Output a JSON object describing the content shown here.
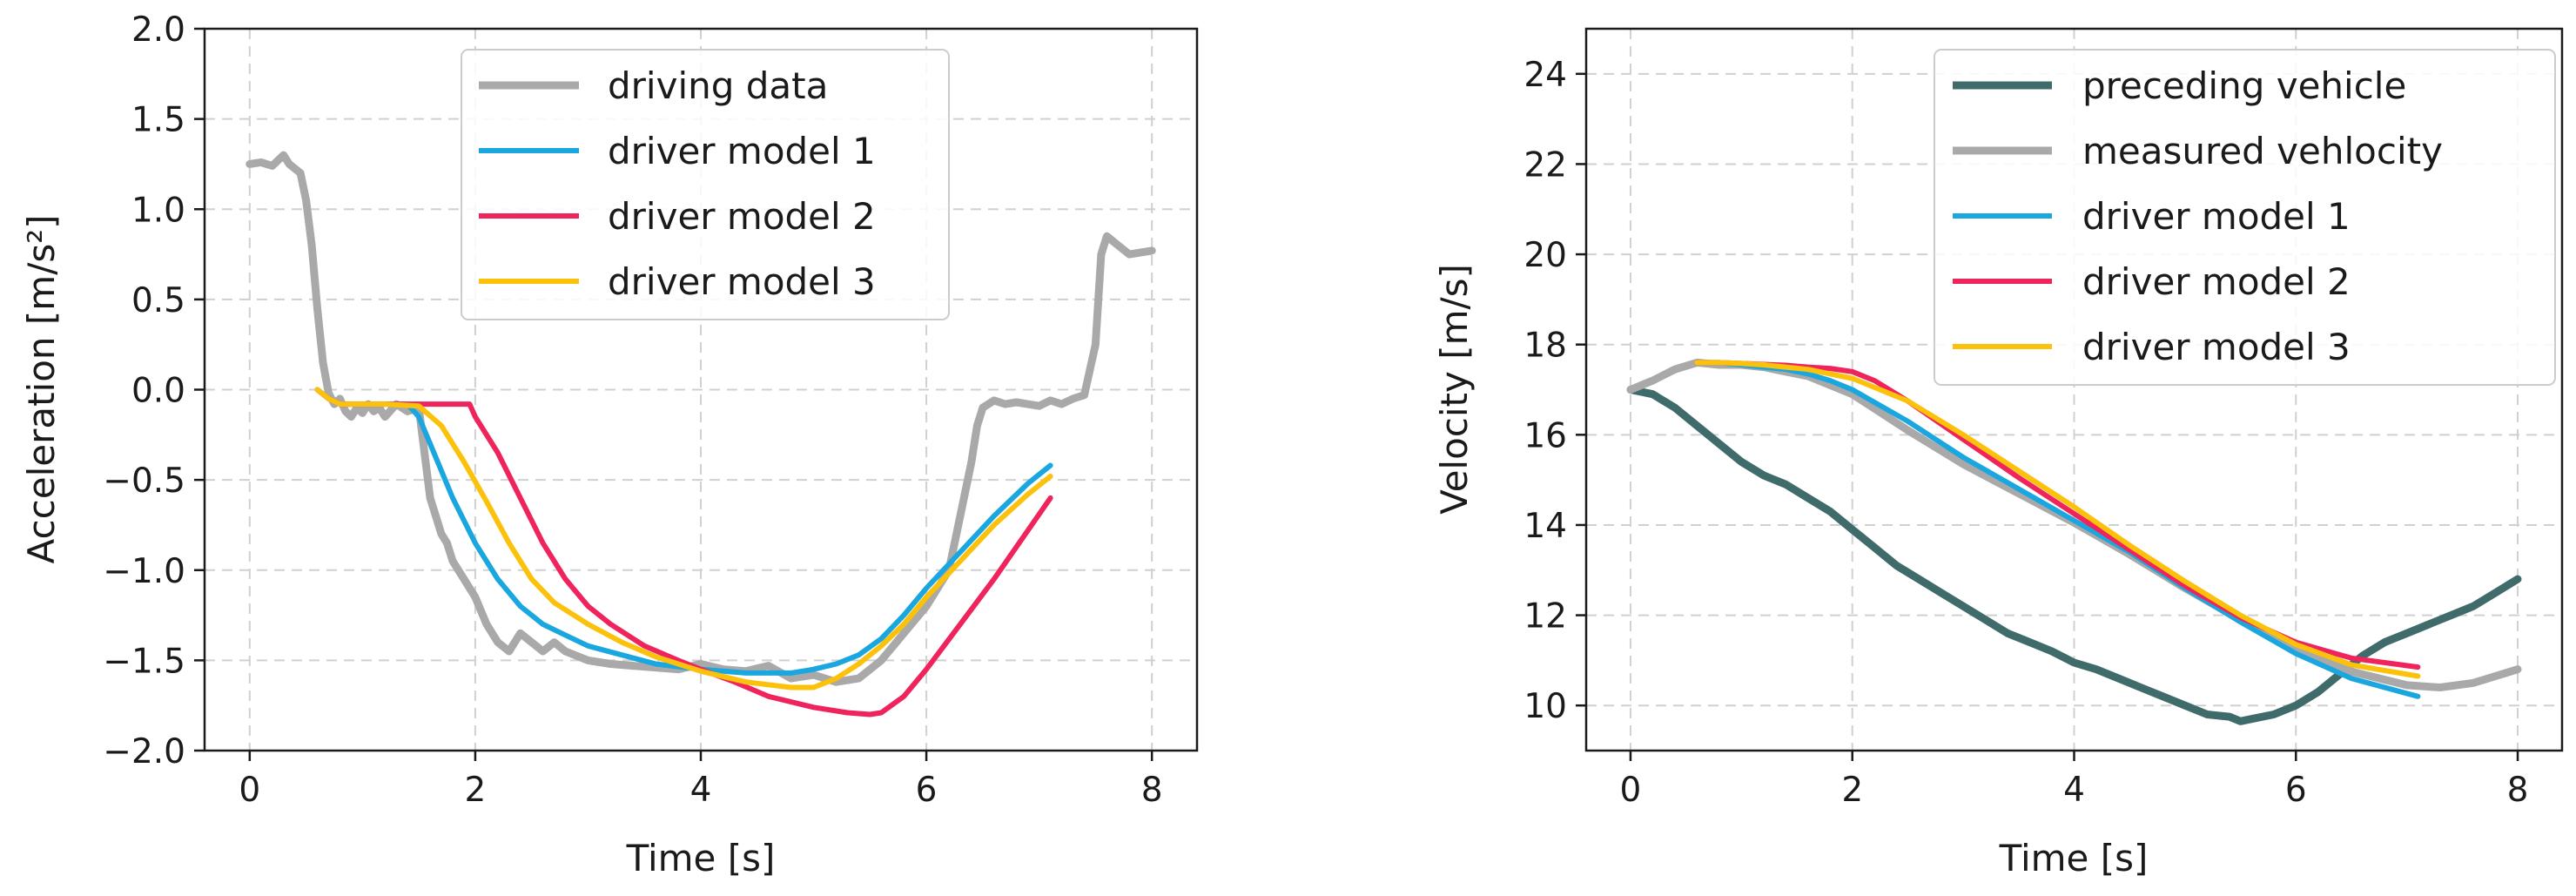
{
  "chart_data": [
    {
      "type": "line",
      "title": "",
      "xlabel": "Time [s]",
      "ylabel": "Acceleration [m/s²]",
      "xlim": [
        -0.4,
        8.4
      ],
      "ylim": [
        -2.0,
        2.0
      ],
      "xticks": [
        0,
        2,
        4,
        6,
        8
      ],
      "yticks": [
        -2.0,
        -1.5,
        -1.0,
        -0.5,
        0.0,
        0.5,
        1.0,
        1.5,
        2.0
      ],
      "xtick_labels": [
        "0",
        "2",
        "4",
        "6",
        "8"
      ],
      "ytick_labels": [
        "−2.0",
        "−1.5",
        "−1.0",
        "−0.5",
        "0.0",
        "0.5",
        "1.0",
        "1.5",
        "2.0"
      ],
      "grid": true,
      "legend_position": "top-center",
      "series": [
        {
          "name": "driving data",
          "color": "#a9a9a9",
          "width": 9,
          "x": [
            0.0,
            0.1,
            0.2,
            0.3,
            0.35,
            0.45,
            0.5,
            0.55,
            0.6,
            0.65,
            0.7,
            0.75,
            0.8,
            0.85,
            0.9,
            0.95,
            1.0,
            1.05,
            1.1,
            1.15,
            1.2,
            1.3,
            1.4,
            1.5,
            1.55,
            1.6,
            1.7,
            1.75,
            1.8,
            1.9,
            2.0,
            2.1,
            2.2,
            2.3,
            2.4,
            2.5,
            2.6,
            2.7,
            2.8,
            3.0,
            3.2,
            3.4,
            3.6,
            3.8,
            4.0,
            4.2,
            4.4,
            4.6,
            4.8,
            5.0,
            5.2,
            5.4,
            5.6,
            5.8,
            6.0,
            6.2,
            6.3,
            6.4,
            6.45,
            6.5,
            6.6,
            6.7,
            6.8,
            7.0,
            7.1,
            7.2,
            7.3,
            7.4,
            7.5,
            7.55,
            7.6,
            7.7,
            7.8,
            8.0
          ],
          "y": [
            1.25,
            1.26,
            1.24,
            1.3,
            1.25,
            1.2,
            1.05,
            0.8,
            0.45,
            0.15,
            -0.02,
            -0.08,
            -0.05,
            -0.12,
            -0.15,
            -0.1,
            -0.13,
            -0.08,
            -0.12,
            -0.1,
            -0.15,
            -0.08,
            -0.12,
            -0.1,
            -0.35,
            -0.6,
            -0.8,
            -0.85,
            -0.95,
            -1.05,
            -1.15,
            -1.3,
            -1.4,
            -1.45,
            -1.35,
            -1.4,
            -1.45,
            -1.4,
            -1.45,
            -1.5,
            -1.52,
            -1.53,
            -1.54,
            -1.55,
            -1.52,
            -1.55,
            -1.56,
            -1.53,
            -1.6,
            -1.58,
            -1.62,
            -1.6,
            -1.5,
            -1.35,
            -1.2,
            -1.0,
            -0.7,
            -0.4,
            -0.2,
            -0.1,
            -0.06,
            -0.08,
            -0.07,
            -0.09,
            -0.06,
            -0.08,
            -0.05,
            -0.03,
            0.25,
            0.75,
            0.85,
            0.8,
            0.75,
            0.77
          ]
        },
        {
          "name": "driver model 1",
          "color": "#1aa7df",
          "width": 6,
          "x": [
            0.6,
            0.7,
            0.8,
            1.0,
            1.2,
            1.4,
            1.5,
            1.6,
            1.8,
            2.0,
            2.2,
            2.4,
            2.6,
            2.8,
            3.0,
            3.3,
            3.6,
            4.0,
            4.4,
            4.8,
            5.0,
            5.2,
            5.4,
            5.6,
            5.8,
            6.0,
            6.3,
            6.6,
            6.9,
            7.1
          ],
          "y": [
            0.0,
            -0.05,
            -0.08,
            -0.08,
            -0.08,
            -0.08,
            -0.15,
            -0.3,
            -0.6,
            -0.85,
            -1.05,
            -1.2,
            -1.3,
            -1.36,
            -1.42,
            -1.47,
            -1.52,
            -1.55,
            -1.57,
            -1.57,
            -1.55,
            -1.52,
            -1.47,
            -1.38,
            -1.25,
            -1.1,
            -0.9,
            -0.7,
            -0.52,
            -0.42
          ]
        },
        {
          "name": "driver model 2",
          "color": "#f0245c",
          "width": 6,
          "x": [
            0.6,
            0.7,
            0.8,
            1.0,
            1.2,
            1.5,
            1.8,
            1.95,
            2.0,
            2.2,
            2.4,
            2.6,
            2.8,
            3.0,
            3.2,
            3.5,
            3.8,
            4.0,
            4.3,
            4.6,
            5.0,
            5.3,
            5.5,
            5.6,
            5.8,
            6.0,
            6.3,
            6.6,
            6.9,
            7.1
          ],
          "y": [
            0.0,
            -0.05,
            -0.08,
            -0.08,
            -0.08,
            -0.08,
            -0.08,
            -0.08,
            -0.15,
            -0.35,
            -0.6,
            -0.85,
            -1.05,
            -1.2,
            -1.3,
            -1.42,
            -1.5,
            -1.55,
            -1.62,
            -1.7,
            -1.76,
            -1.79,
            -1.8,
            -1.79,
            -1.7,
            -1.55,
            -1.3,
            -1.05,
            -0.78,
            -0.6
          ]
        },
        {
          "name": "driver model 3",
          "color": "#fcc10a",
          "width": 6,
          "x": [
            0.6,
            0.7,
            0.8,
            1.0,
            1.2,
            1.5,
            1.7,
            1.9,
            2.1,
            2.3,
            2.5,
            2.7,
            3.0,
            3.3,
            3.6,
            4.0,
            4.4,
            4.8,
            5.0,
            5.2,
            5.4,
            5.6,
            5.8,
            6.0,
            6.3,
            6.6,
            6.9,
            7.1
          ],
          "y": [
            0.0,
            -0.05,
            -0.08,
            -0.08,
            -0.08,
            -0.09,
            -0.2,
            -0.4,
            -0.62,
            -0.85,
            -1.05,
            -1.18,
            -1.3,
            -1.4,
            -1.48,
            -1.56,
            -1.62,
            -1.65,
            -1.65,
            -1.6,
            -1.52,
            -1.42,
            -1.3,
            -1.15,
            -0.95,
            -0.75,
            -0.58,
            -0.48
          ]
        }
      ]
    },
    {
      "type": "line",
      "title": "",
      "xlabel": "Time [s]",
      "ylabel": "Velocity [m/s]",
      "xlim": [
        -0.4,
        8.4
      ],
      "ylim": [
        9.0,
        25.0
      ],
      "xticks": [
        0,
        2,
        4,
        6,
        8
      ],
      "yticks": [
        10,
        12,
        14,
        16,
        18,
        20,
        22,
        24
      ],
      "xtick_labels": [
        "0",
        "2",
        "4",
        "6",
        "8"
      ],
      "ytick_labels": [
        "10",
        "12",
        "14",
        "16",
        "18",
        "20",
        "22",
        "24"
      ],
      "grid": true,
      "legend_position": "top-right",
      "series": [
        {
          "name": "preceding vehicle",
          "color": "#3f6b6b",
          "width": 9,
          "x": [
            0.0,
            0.2,
            0.4,
            0.6,
            0.8,
            1.0,
            1.2,
            1.4,
            1.6,
            1.8,
            2.0,
            2.2,
            2.4,
            2.6,
            2.8,
            3.0,
            3.2,
            3.4,
            3.6,
            3.8,
            4.0,
            4.2,
            4.4,
            4.6,
            4.8,
            5.0,
            5.2,
            5.4,
            5.5,
            5.6,
            5.8,
            6.0,
            6.2,
            6.4,
            6.6,
            6.8,
            7.0,
            7.2,
            7.4,
            7.6,
            7.8,
            8.0
          ],
          "y": [
            17.0,
            16.9,
            16.6,
            16.2,
            15.8,
            15.4,
            15.1,
            14.9,
            14.6,
            14.3,
            13.9,
            13.5,
            13.1,
            12.8,
            12.5,
            12.2,
            11.9,
            11.6,
            11.4,
            11.2,
            10.95,
            10.8,
            10.6,
            10.4,
            10.2,
            10.0,
            9.8,
            9.75,
            9.65,
            9.7,
            9.8,
            10.0,
            10.3,
            10.7,
            11.1,
            11.4,
            11.6,
            11.8,
            12.0,
            12.2,
            12.5,
            12.8
          ]
        },
        {
          "name": "measured vehlocity",
          "color": "#a9a9a9",
          "width": 9,
          "x": [
            0.0,
            0.2,
            0.4,
            0.6,
            0.8,
            1.0,
            1.2,
            1.4,
            1.6,
            1.8,
            2.0,
            2.5,
            3.0,
            3.5,
            4.0,
            4.5,
            5.0,
            5.5,
            6.0,
            6.5,
            7.0,
            7.3,
            7.6,
            8.0
          ],
          "y": [
            17.0,
            17.2,
            17.45,
            17.6,
            17.55,
            17.55,
            17.5,
            17.4,
            17.3,
            17.1,
            16.9,
            16.1,
            15.35,
            14.7,
            14.05,
            13.35,
            12.6,
            11.9,
            11.25,
            10.75,
            10.45,
            10.4,
            10.5,
            10.8
          ]
        },
        {
          "name": "driver model 1",
          "color": "#1aa7df",
          "width": 6,
          "x": [
            0.6,
            0.8,
            1.0,
            1.2,
            1.4,
            1.6,
            1.8,
            2.0,
            2.5,
            3.0,
            3.5,
            4.0,
            4.5,
            5.0,
            5.5,
            6.0,
            6.5,
            7.1
          ],
          "y": [
            17.6,
            17.6,
            17.55,
            17.5,
            17.45,
            17.35,
            17.2,
            17.0,
            16.3,
            15.5,
            14.8,
            14.1,
            13.4,
            12.6,
            11.85,
            11.15,
            10.6,
            10.2
          ]
        },
        {
          "name": "driver model 2",
          "color": "#f0245c",
          "width": 6,
          "x": [
            0.6,
            0.8,
            1.0,
            1.2,
            1.4,
            1.6,
            1.8,
            2.0,
            2.2,
            2.5,
            3.0,
            3.5,
            4.0,
            4.5,
            5.0,
            5.5,
            6.0,
            6.5,
            7.1
          ],
          "y": [
            17.6,
            17.6,
            17.58,
            17.56,
            17.54,
            17.5,
            17.47,
            17.4,
            17.2,
            16.75,
            15.9,
            15.05,
            14.25,
            13.45,
            12.65,
            11.95,
            11.4,
            11.05,
            10.85
          ]
        },
        {
          "name": "driver model 3",
          "color": "#fcc10a",
          "width": 6,
          "x": [
            0.6,
            0.8,
            1.0,
            1.2,
            1.4,
            1.6,
            1.8,
            2.0,
            2.5,
            3.0,
            3.5,
            4.0,
            4.5,
            5.0,
            5.5,
            6.0,
            6.5,
            7.1
          ],
          "y": [
            17.6,
            17.6,
            17.58,
            17.55,
            17.5,
            17.45,
            17.35,
            17.25,
            16.75,
            16.0,
            15.2,
            14.4,
            13.55,
            12.75,
            12.0,
            11.35,
            10.9,
            10.65
          ]
        }
      ]
    }
  ]
}
